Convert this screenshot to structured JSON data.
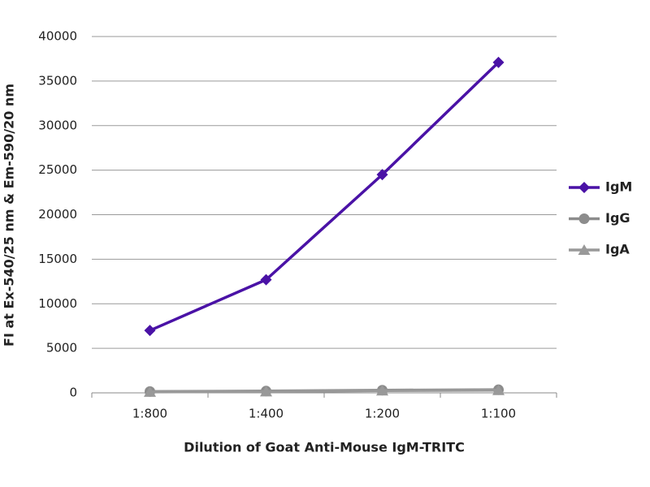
{
  "chart_data": {
    "type": "line",
    "x_label": "Dilution of Goat Anti-Mouse IgM-TRITC",
    "y_label": "FI at Ex-540/25 nm & Em-590/20 nm",
    "categories": [
      "1:800",
      "1:400",
      "1:200",
      "1:100"
    ],
    "series": [
      {
        "name": "IgM",
        "color": "#4a12a6",
        "marker": "diamond",
        "values": [
          7000,
          12700,
          24500,
          37100
        ]
      },
      {
        "name": "IgG",
        "color": "#8c8c8c",
        "marker": "circle",
        "values": [
          150,
          200,
          300,
          350
        ]
      },
      {
        "name": "IgA",
        "color": "#999999",
        "marker": "triangle",
        "values": [
          100,
          150,
          250,
          300
        ]
      }
    ],
    "ylim": [
      0,
      40000
    ],
    "yticks": [
      0,
      5000,
      10000,
      15000,
      20000,
      25000,
      30000,
      35000,
      40000
    ],
    "grid": true,
    "legend": "right"
  }
}
